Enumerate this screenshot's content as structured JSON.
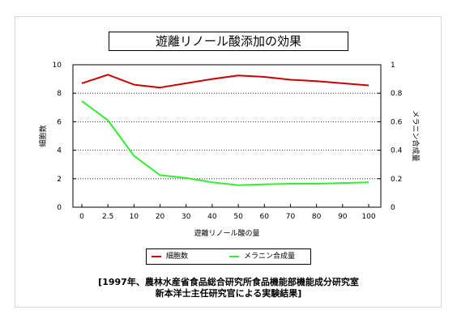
{
  "chart_data": {
    "type": "line",
    "title": "遊離リノール酸添加の効果",
    "xlabel": "遊離リノール酸の量",
    "ylabel_left": "細胞数",
    "ylabel_right": "メラニン合成量",
    "categories": [
      "0",
      "2.5",
      "10",
      "20",
      "30",
      "40",
      "50",
      "60",
      "70",
      "80",
      "90",
      "100"
    ],
    "ylim_left": [
      0,
      10
    ],
    "ylim_right": [
      0,
      1
    ],
    "yticks_left": [
      "0",
      "2",
      "4",
      "6",
      "8",
      "10"
    ],
    "yticks_right": [
      "0",
      "0.2",
      "0.4",
      "0.6",
      "0.8",
      "1"
    ],
    "grid": "horizontal dotted",
    "legend_position": "bottom",
    "series": [
      {
        "name": "細胞数",
        "axis": "left",
        "color": "#cc0000",
        "values": [
          8.7,
          9.3,
          8.6,
          8.4,
          8.7,
          9.0,
          9.25,
          9.15,
          8.95,
          8.85,
          8.7,
          8.55
        ]
      },
      {
        "name": "メラニン合成量",
        "axis": "right",
        "color": "#33ee33",
        "values": [
          0.745,
          0.61,
          0.36,
          0.225,
          0.205,
          0.175,
          0.155,
          0.16,
          0.165,
          0.165,
          0.17,
          0.175
        ]
      }
    ]
  },
  "source": {
    "line1": "[1997年、農林水産省食品総合研究所食品機能部機能成分研究室",
    "line2": "新本洋士主任研究官による実験結果]"
  }
}
